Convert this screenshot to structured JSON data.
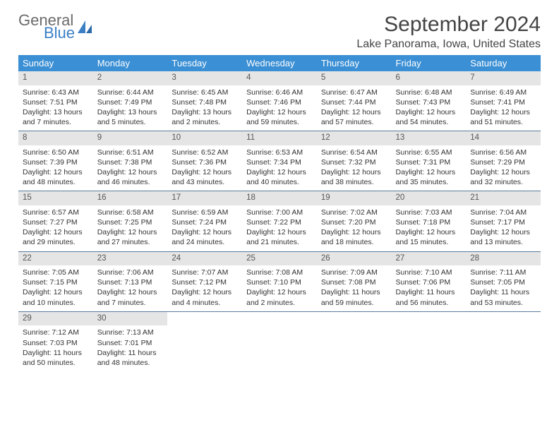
{
  "logo": {
    "line1": "General",
    "line2": "Blue",
    "accent_color": "#3b7fc4"
  },
  "title": "September 2024",
  "subtitle": "Lake Panorama, Iowa, United States",
  "header_bg": "#3b8fd4",
  "daynum_bg": "#e5e5e5",
  "row_border": "#5a7ca0",
  "weekdays": [
    "Sunday",
    "Monday",
    "Tuesday",
    "Wednesday",
    "Thursday",
    "Friday",
    "Saturday"
  ],
  "days": [
    {
      "n": "1",
      "sr": "Sunrise: 6:43 AM",
      "ss": "Sunset: 7:51 PM",
      "dl": "Daylight: 13 hours and 7 minutes."
    },
    {
      "n": "2",
      "sr": "Sunrise: 6:44 AM",
      "ss": "Sunset: 7:49 PM",
      "dl": "Daylight: 13 hours and 5 minutes."
    },
    {
      "n": "3",
      "sr": "Sunrise: 6:45 AM",
      "ss": "Sunset: 7:48 PM",
      "dl": "Daylight: 13 hours and 2 minutes."
    },
    {
      "n": "4",
      "sr": "Sunrise: 6:46 AM",
      "ss": "Sunset: 7:46 PM",
      "dl": "Daylight: 12 hours and 59 minutes."
    },
    {
      "n": "5",
      "sr": "Sunrise: 6:47 AM",
      "ss": "Sunset: 7:44 PM",
      "dl": "Daylight: 12 hours and 57 minutes."
    },
    {
      "n": "6",
      "sr": "Sunrise: 6:48 AM",
      "ss": "Sunset: 7:43 PM",
      "dl": "Daylight: 12 hours and 54 minutes."
    },
    {
      "n": "7",
      "sr": "Sunrise: 6:49 AM",
      "ss": "Sunset: 7:41 PM",
      "dl": "Daylight: 12 hours and 51 minutes."
    },
    {
      "n": "8",
      "sr": "Sunrise: 6:50 AM",
      "ss": "Sunset: 7:39 PM",
      "dl": "Daylight: 12 hours and 48 minutes."
    },
    {
      "n": "9",
      "sr": "Sunrise: 6:51 AM",
      "ss": "Sunset: 7:38 PM",
      "dl": "Daylight: 12 hours and 46 minutes."
    },
    {
      "n": "10",
      "sr": "Sunrise: 6:52 AM",
      "ss": "Sunset: 7:36 PM",
      "dl": "Daylight: 12 hours and 43 minutes."
    },
    {
      "n": "11",
      "sr": "Sunrise: 6:53 AM",
      "ss": "Sunset: 7:34 PM",
      "dl": "Daylight: 12 hours and 40 minutes."
    },
    {
      "n": "12",
      "sr": "Sunrise: 6:54 AM",
      "ss": "Sunset: 7:32 PM",
      "dl": "Daylight: 12 hours and 38 minutes."
    },
    {
      "n": "13",
      "sr": "Sunrise: 6:55 AM",
      "ss": "Sunset: 7:31 PM",
      "dl": "Daylight: 12 hours and 35 minutes."
    },
    {
      "n": "14",
      "sr": "Sunrise: 6:56 AM",
      "ss": "Sunset: 7:29 PM",
      "dl": "Daylight: 12 hours and 32 minutes."
    },
    {
      "n": "15",
      "sr": "Sunrise: 6:57 AM",
      "ss": "Sunset: 7:27 PM",
      "dl": "Daylight: 12 hours and 29 minutes."
    },
    {
      "n": "16",
      "sr": "Sunrise: 6:58 AM",
      "ss": "Sunset: 7:25 PM",
      "dl": "Daylight: 12 hours and 27 minutes."
    },
    {
      "n": "17",
      "sr": "Sunrise: 6:59 AM",
      "ss": "Sunset: 7:24 PM",
      "dl": "Daylight: 12 hours and 24 minutes."
    },
    {
      "n": "18",
      "sr": "Sunrise: 7:00 AM",
      "ss": "Sunset: 7:22 PM",
      "dl": "Daylight: 12 hours and 21 minutes."
    },
    {
      "n": "19",
      "sr": "Sunrise: 7:02 AM",
      "ss": "Sunset: 7:20 PM",
      "dl": "Daylight: 12 hours and 18 minutes."
    },
    {
      "n": "20",
      "sr": "Sunrise: 7:03 AM",
      "ss": "Sunset: 7:18 PM",
      "dl": "Daylight: 12 hours and 15 minutes."
    },
    {
      "n": "21",
      "sr": "Sunrise: 7:04 AM",
      "ss": "Sunset: 7:17 PM",
      "dl": "Daylight: 12 hours and 13 minutes."
    },
    {
      "n": "22",
      "sr": "Sunrise: 7:05 AM",
      "ss": "Sunset: 7:15 PM",
      "dl": "Daylight: 12 hours and 10 minutes."
    },
    {
      "n": "23",
      "sr": "Sunrise: 7:06 AM",
      "ss": "Sunset: 7:13 PM",
      "dl": "Daylight: 12 hours and 7 minutes."
    },
    {
      "n": "24",
      "sr": "Sunrise: 7:07 AM",
      "ss": "Sunset: 7:12 PM",
      "dl": "Daylight: 12 hours and 4 minutes."
    },
    {
      "n": "25",
      "sr": "Sunrise: 7:08 AM",
      "ss": "Sunset: 7:10 PM",
      "dl": "Daylight: 12 hours and 2 minutes."
    },
    {
      "n": "26",
      "sr": "Sunrise: 7:09 AM",
      "ss": "Sunset: 7:08 PM",
      "dl": "Daylight: 11 hours and 59 minutes."
    },
    {
      "n": "27",
      "sr": "Sunrise: 7:10 AM",
      "ss": "Sunset: 7:06 PM",
      "dl": "Daylight: 11 hours and 56 minutes."
    },
    {
      "n": "28",
      "sr": "Sunrise: 7:11 AM",
      "ss": "Sunset: 7:05 PM",
      "dl": "Daylight: 11 hours and 53 minutes."
    },
    {
      "n": "29",
      "sr": "Sunrise: 7:12 AM",
      "ss": "Sunset: 7:03 PM",
      "dl": "Daylight: 11 hours and 50 minutes."
    },
    {
      "n": "30",
      "sr": "Sunrise: 7:13 AM",
      "ss": "Sunset: 7:01 PM",
      "dl": "Daylight: 11 hours and 48 minutes."
    }
  ]
}
